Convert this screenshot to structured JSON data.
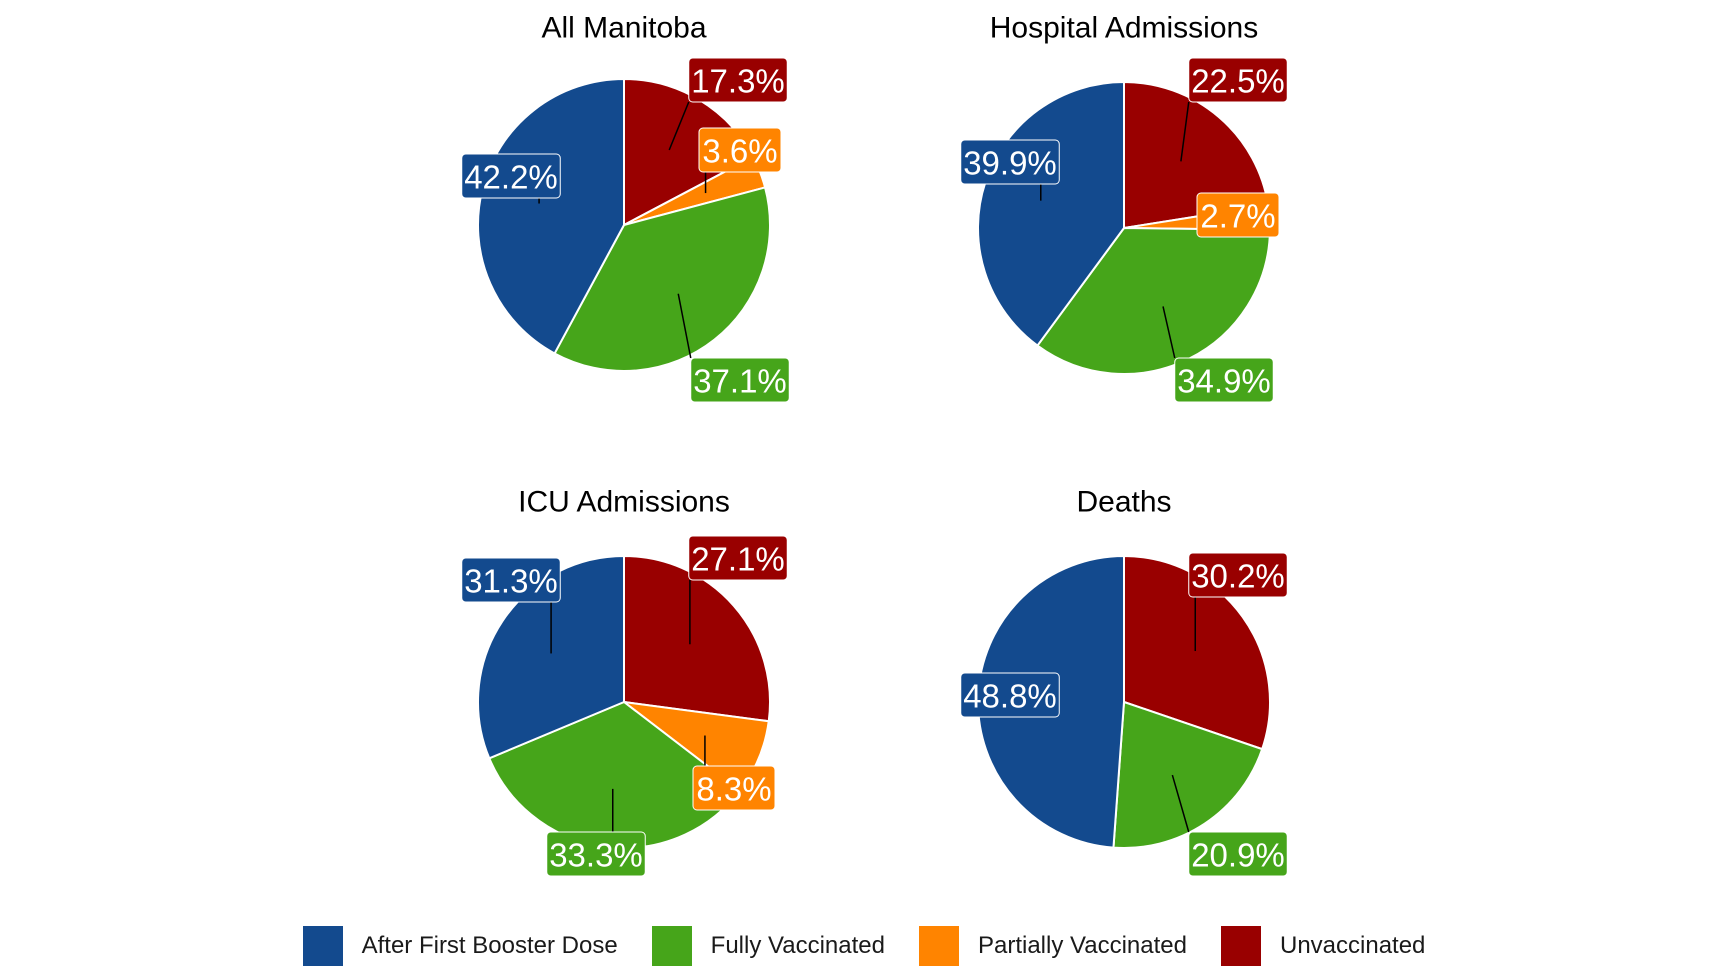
{
  "chart_data": {
    "type": "pie",
    "categories": [
      "After First Booster Dose",
      "Fully Vaccinated",
      "Partially Vaccinated",
      "Unvaccinated"
    ],
    "colors": {
      "After First Booster Dose": "#134a8e",
      "Fully Vaccinated": "#46a51a",
      "Partially Vaccinated": "#ff8400",
      "Unvaccinated": "#990000"
    },
    "charts": [
      {
        "title": "All Manitoba",
        "slices": [
          {
            "category": "Unvaccinated",
            "value": 17.3,
            "label": "17.3%"
          },
          {
            "category": "Partially Vaccinated",
            "value": 3.6,
            "label": "3.6%"
          },
          {
            "category": "Fully Vaccinated",
            "value": 37.1,
            "label": "37.1%"
          },
          {
            "category": "After First Booster Dose",
            "value": 42.2,
            "label": "42.2%"
          }
        ]
      },
      {
        "title": "Hospital Admissions",
        "slices": [
          {
            "category": "Unvaccinated",
            "value": 22.5,
            "label": "22.5%"
          },
          {
            "category": "Partially Vaccinated",
            "value": 2.7,
            "label": "2.7%"
          },
          {
            "category": "Fully Vaccinated",
            "value": 34.9,
            "label": "34.9%"
          },
          {
            "category": "After First Booster Dose",
            "value": 39.9,
            "label": "39.9%"
          }
        ]
      },
      {
        "title": "ICU Admissions",
        "slices": [
          {
            "category": "Unvaccinated",
            "value": 27.1,
            "label": "27.1%"
          },
          {
            "category": "Partially Vaccinated",
            "value": 8.3,
            "label": "8.3%"
          },
          {
            "category": "Fully Vaccinated",
            "value": 33.3,
            "label": "33.3%"
          },
          {
            "category": "After First Booster Dose",
            "value": 31.3,
            "label": "31.3%"
          }
        ]
      },
      {
        "title": "Deaths",
        "slices": [
          {
            "category": "Unvaccinated",
            "value": 30.2,
            "label": "30.2%"
          },
          {
            "category": "Fully Vaccinated",
            "value": 20.9,
            "label": "20.9%"
          },
          {
            "category": "After First Booster Dose",
            "value": 48.8,
            "label": "48.8%"
          }
        ]
      }
    ],
    "legend": {
      "position": "bottom",
      "items": [
        "After First Booster Dose",
        "Fully Vaccinated",
        "Partially Vaccinated",
        "Unvaccinated"
      ]
    }
  }
}
